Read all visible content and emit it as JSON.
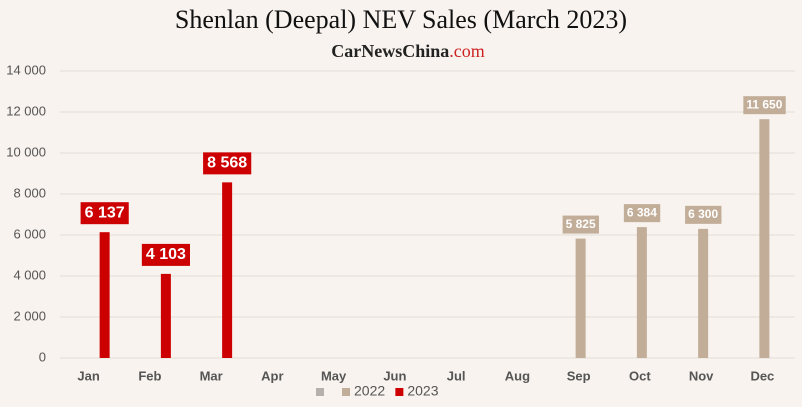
{
  "chart_data": {
    "type": "bar",
    "title": "Shenlan (Deepal) NEV Sales (March 2023)",
    "source": {
      "name": "CarNewsChina",
      "domain": ".com"
    },
    "categories": [
      "Jan",
      "Feb",
      "Mar",
      "Apr",
      "May",
      "Jun",
      "Jul",
      "Aug",
      "Sep",
      "Oct",
      "Nov",
      "Dec"
    ],
    "series": [
      {
        "name": null,
        "color": "#b5b0aa",
        "values": [
          null,
          null,
          null,
          null,
          null,
          null,
          null,
          null,
          null,
          null,
          null,
          null
        ]
      },
      {
        "name": "2022",
        "color": "#c2ad98",
        "values": [
          null,
          null,
          null,
          null,
          null,
          null,
          null,
          null,
          5825,
          6384,
          6300,
          11650
        ],
        "value_labels": [
          null,
          null,
          null,
          null,
          null,
          null,
          null,
          null,
          "5 825",
          "6 384",
          "6 300",
          "11 650"
        ]
      },
      {
        "name": "2023",
        "color": "#cc0000",
        "values": [
          6137,
          4103,
          8568,
          null,
          null,
          null,
          null,
          null,
          null,
          null,
          null,
          null
        ],
        "value_labels": [
          "6 137",
          "4 103",
          "8 568",
          null,
          null,
          null,
          null,
          null,
          null,
          null,
          null,
          null
        ]
      }
    ],
    "ylim": [
      0,
      14000
    ],
    "yticks": [
      0,
      {
        "value": 2000,
        "label": "2 000"
      },
      {
        "value": 4000,
        "label": "4 000"
      },
      {
        "value": 6000,
        "label": "6 000"
      },
      {
        "value": 8000,
        "label": "8 000"
      },
      {
        "value": 10000,
        "label": "10 000"
      },
      {
        "value": 12000,
        "label": "12 000"
      },
      {
        "value": 14000,
        "label": "14 000"
      }
    ],
    "grid": true
  }
}
